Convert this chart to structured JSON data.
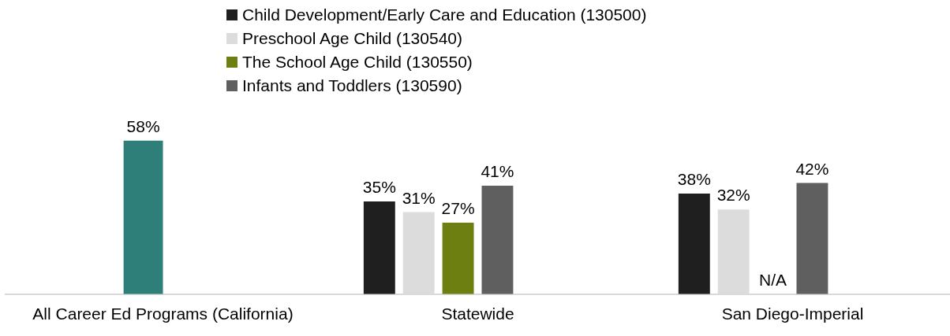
{
  "chart_data": {
    "type": "bar",
    "categories": [
      "All Career Ed Programs (California)",
      "Statewide",
      "San Diego-Imperial"
    ],
    "series": [
      {
        "color": "#2e7f79",
        "values": [
          58,
          null,
          null
        ],
        "value_labels": [
          "58%",
          null,
          null
        ]
      },
      {
        "name": "Child Development/Early Care and Education (130500)",
        "color": "#1f1f1f",
        "values": [
          null,
          35,
          38
        ],
        "value_labels": [
          null,
          "35%",
          "38%"
        ]
      },
      {
        "name": "Preschool Age Child (130540)",
        "color": "#dcdcdc",
        "values": [
          null,
          31,
          32
        ],
        "value_labels": [
          null,
          "31%",
          "32%"
        ]
      },
      {
        "name": "The School Age Child (130550)",
        "color": "#6e7f12",
        "values": [
          null,
          27,
          null
        ],
        "value_labels": [
          null,
          "27%",
          "N/A"
        ]
      },
      {
        "name": "Infants and Toddlers (130590)",
        "color": "#5f5f5f",
        "values": [
          null,
          41,
          42
        ],
        "value_labels": [
          null,
          "41%",
          "42%"
        ]
      }
    ],
    "legend": "top",
    "grid": false
  }
}
